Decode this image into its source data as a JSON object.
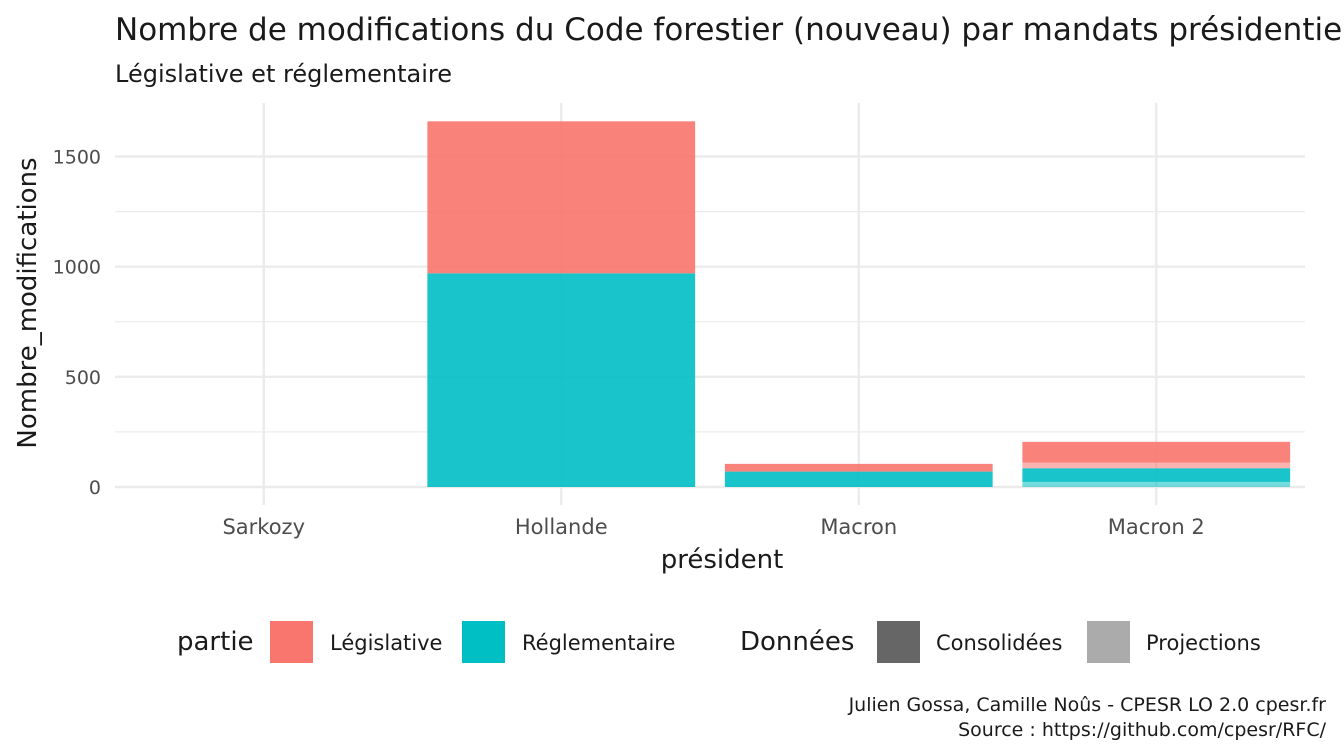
{
  "chart_data": {
    "type": "bar",
    "stacked": true,
    "title": "Nombre de modifications du Code forestier (nouveau) par mandats présidentiels",
    "subtitle": "Législative et réglementaire",
    "xlabel": "président",
    "ylabel": "Nombre_modifications",
    "categories": [
      "Sarkozy",
      "Hollande",
      "Macron",
      "Macron 2"
    ],
    "ylim": [
      0,
      1650
    ],
    "y_ticks": [
      0,
      500,
      1000,
      1500
    ],
    "y_tick_labels": [
      "0",
      "500",
      "1000",
      "1500"
    ],
    "grid": true,
    "legend_position": "bottom",
    "series": [
      {
        "partie": "Législative",
        "donnees": "Consolidées",
        "values": [
          0,
          690,
          35,
          95
        ]
      },
      {
        "partie": "Législative",
        "donnees": "Projections",
        "values": [
          0,
          0,
          0,
          25
        ]
      },
      {
        "partie": "Réglementaire",
        "donnees": "Consolidées",
        "values": [
          0,
          970,
          70,
          62
        ]
      },
      {
        "partie": "Réglementaire",
        "donnees": "Projections",
        "values": [
          0,
          0,
          0,
          23
        ]
      }
    ],
    "legend": {
      "partie_title": "partie",
      "partie_items": [
        {
          "label": "Législative",
          "color": "#F8766D"
        },
        {
          "label": "Réglementaire",
          "color": "#00BFC4"
        }
      ],
      "donnees_title": "Données",
      "donnees_items": [
        {
          "label": "Consolidées",
          "color": "#666666"
        },
        {
          "label": "Projections",
          "color": "#ababab"
        }
      ]
    },
    "colors": {
      "Législative": "#F8766D",
      "Réglementaire": "#00BFC4",
      "Consolidées_opacity": 0.9,
      "Projections_opacity": 0.55
    }
  },
  "caption": {
    "line1": "Julien Gossa, Camille Noûs - CPESR LO 2.0 cpesr.fr",
    "line2": "Source : https://github.com/cpesr/RFC/"
  }
}
